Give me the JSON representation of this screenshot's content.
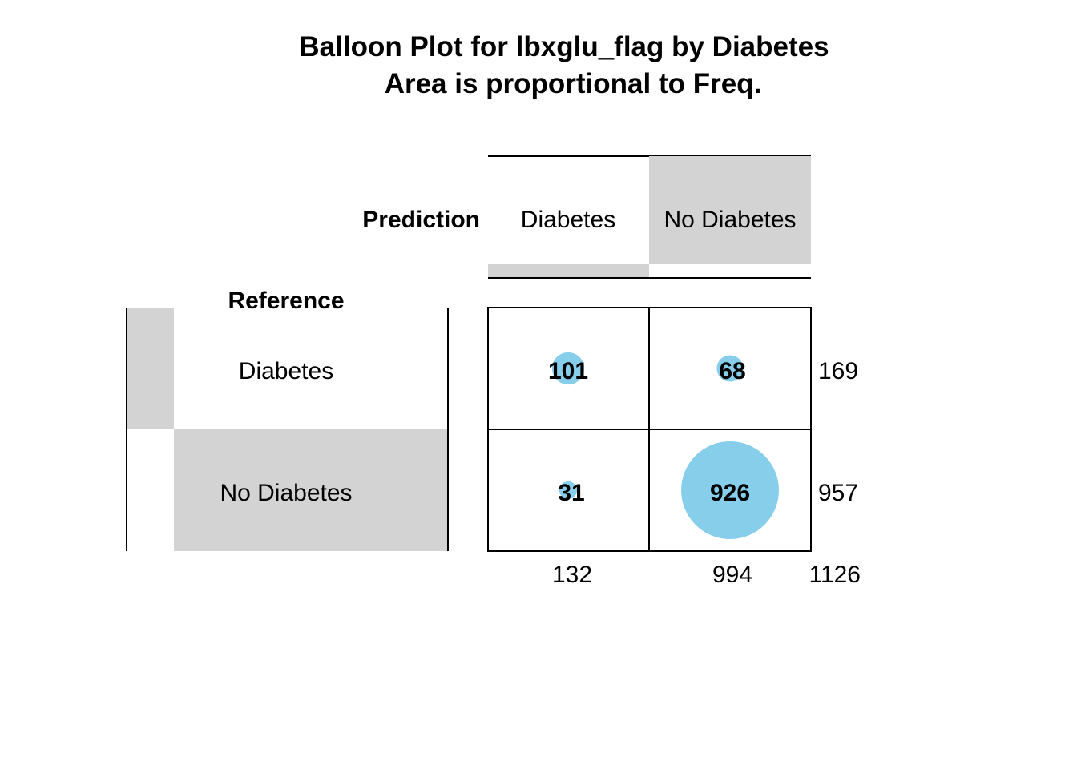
{
  "chart_data": {
    "type": "balloon",
    "title": "Balloon Plot for lbxglu_flag by Diabetes",
    "subtitle": "Area is proportional to Freq.",
    "col_header": "Prediction",
    "row_header": "Reference",
    "col_categories": [
      "Diabetes",
      "No Diabetes"
    ],
    "row_categories": [
      "Diabetes",
      "No Diabetes"
    ],
    "cells": [
      [
        101,
        68
      ],
      [
        31,
        926
      ]
    ],
    "row_totals": [
      169,
      957
    ],
    "col_totals": [
      132,
      994
    ],
    "grand_total": 1126,
    "balloon_color": "#87CEEB",
    "shade_color": "#D3D3D3"
  }
}
